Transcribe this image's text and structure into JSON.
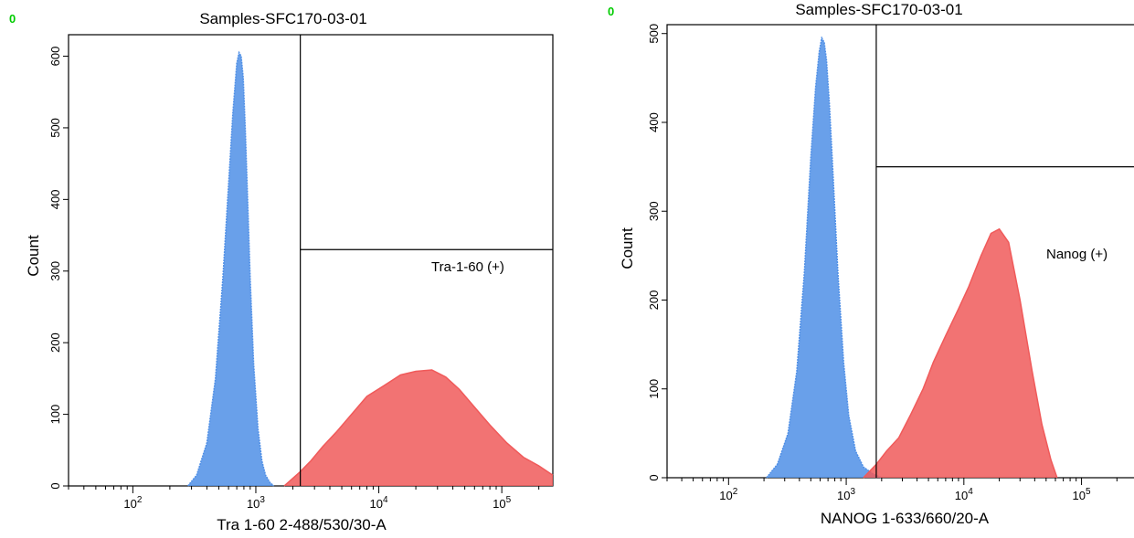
{
  "chart_data": [
    {
      "type": "area",
      "title": "Samples-SFC170-03-01",
      "xlabel": "Tra 1-60 2-488/530/30-A",
      "ylabel": "Count",
      "x_scale": "log",
      "xlim": [
        30,
        260000
      ],
      "ylim": [
        0,
        630
      ],
      "y_ticks": [
        "0",
        "100",
        "200",
        "300",
        "400",
        "500",
        "600"
      ],
      "x_ticks": [
        "10^2",
        "10^3",
        "10^4",
        "10^5"
      ],
      "marker": "0",
      "gate": {
        "label": "Tra-1-60 (+)",
        "x_threshold": 2300,
        "y_threshold": 330
      },
      "series": [
        {
          "color": "#4f8fe6",
          "x": [
            280,
            330,
            400,
            470,
            540,
            600,
            650,
            700,
            730,
            760,
            790,
            820,
            850,
            900,
            960,
            1040,
            1120,
            1200,
            1300,
            1400
          ],
          "values": [
            0,
            15,
            60,
            150,
            290,
            420,
            520,
            590,
            605,
            600,
            570,
            500,
            420,
            290,
            170,
            80,
            35,
            15,
            5,
            0
          ]
        },
        {
          "color": "#f05a5a",
          "x": [
            1700,
            2300,
            2800,
            3500,
            4500,
            6000,
            8000,
            11000,
            15000,
            20000,
            27000,
            35000,
            45000,
            60000,
            80000,
            110000,
            150000,
            200000,
            260000
          ],
          "values": [
            0,
            20,
            35,
            55,
            75,
            100,
            125,
            140,
            155,
            160,
            162,
            152,
            135,
            110,
            85,
            60,
            40,
            28,
            15
          ]
        }
      ]
    },
    {
      "type": "area",
      "title": "Samples-SFC170-03-01",
      "xlabel": "NANOG 1-633/660/20-A",
      "ylabel": "Count",
      "x_scale": "log",
      "xlim": [
        30,
        300000
      ],
      "ylim": [
        0,
        510
      ],
      "y_ticks": [
        "0",
        "100",
        "200",
        "300",
        "400",
        "500"
      ],
      "x_ticks": [
        "10^2",
        "10^3",
        "10^4",
        "10^5"
      ],
      "marker": "0",
      "gate": {
        "label": "Nanog (+)",
        "x_threshold": 1800,
        "y_threshold": 350
      },
      "series": [
        {
          "color": "#4f8fe6",
          "x": [
            210,
            260,
            320,
            380,
            440,
            500,
            550,
            590,
            620,
            650,
            680,
            720,
            780,
            850,
            950,
            1050,
            1200,
            1400,
            1700,
            2000
          ],
          "values": [
            0,
            15,
            50,
            120,
            230,
            360,
            440,
            480,
            495,
            490,
            470,
            420,
            330,
            230,
            130,
            70,
            30,
            12,
            4,
            0
          ]
        },
        {
          "color": "#f05a5a",
          "x": [
            1400,
            1800,
            2200,
            2800,
            3500,
            4500,
            5500,
            7000,
            9000,
            11000,
            14000,
            17000,
            20000,
            24000,
            30000,
            38000,
            46000,
            55000,
            62000
          ],
          "values": [
            0,
            15,
            30,
            45,
            70,
            100,
            130,
            160,
            190,
            215,
            250,
            275,
            280,
            265,
            200,
            120,
            60,
            20,
            0
          ]
        }
      ]
    }
  ]
}
